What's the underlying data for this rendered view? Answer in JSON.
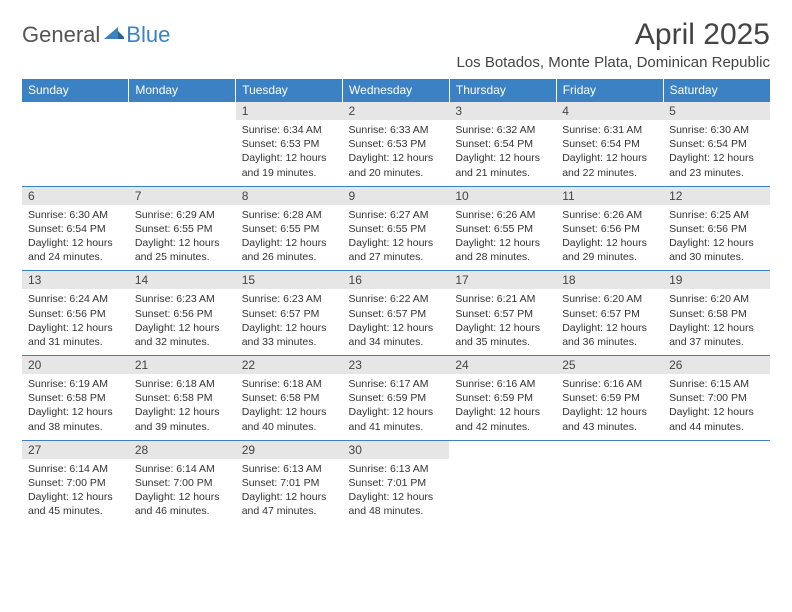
{
  "brand": {
    "part1": "General",
    "part2": "Blue"
  },
  "title": "April 2025",
  "location": "Los Botados, Monte Plata, Dominican Republic",
  "colors": {
    "header_bg": "#3b82c4",
    "header_text": "#ffffff",
    "daynum_bg": "#e6e6e6",
    "border": "#3b82c4",
    "body_text": "#333333",
    "page_bg": "#ffffff"
  },
  "typography": {
    "title_fontsize": 30,
    "location_fontsize": 15,
    "dayheader_fontsize": 12,
    "daynum_fontsize": 12,
    "cell_fontsize": 10.5
  },
  "day_headers": [
    "Sunday",
    "Monday",
    "Tuesday",
    "Wednesday",
    "Thursday",
    "Friday",
    "Saturday"
  ],
  "weeks": [
    [
      null,
      null,
      {
        "n": "1",
        "sr": "6:34 AM",
        "ss": "6:53 PM",
        "dl": "12 hours and 19 minutes."
      },
      {
        "n": "2",
        "sr": "6:33 AM",
        "ss": "6:53 PM",
        "dl": "12 hours and 20 minutes."
      },
      {
        "n": "3",
        "sr": "6:32 AM",
        "ss": "6:54 PM",
        "dl": "12 hours and 21 minutes."
      },
      {
        "n": "4",
        "sr": "6:31 AM",
        "ss": "6:54 PM",
        "dl": "12 hours and 22 minutes."
      },
      {
        "n": "5",
        "sr": "6:30 AM",
        "ss": "6:54 PM",
        "dl": "12 hours and 23 minutes."
      }
    ],
    [
      {
        "n": "6",
        "sr": "6:30 AM",
        "ss": "6:54 PM",
        "dl": "12 hours and 24 minutes."
      },
      {
        "n": "7",
        "sr": "6:29 AM",
        "ss": "6:55 PM",
        "dl": "12 hours and 25 minutes."
      },
      {
        "n": "8",
        "sr": "6:28 AM",
        "ss": "6:55 PM",
        "dl": "12 hours and 26 minutes."
      },
      {
        "n": "9",
        "sr": "6:27 AM",
        "ss": "6:55 PM",
        "dl": "12 hours and 27 minutes."
      },
      {
        "n": "10",
        "sr": "6:26 AM",
        "ss": "6:55 PM",
        "dl": "12 hours and 28 minutes."
      },
      {
        "n": "11",
        "sr": "6:26 AM",
        "ss": "6:56 PM",
        "dl": "12 hours and 29 minutes."
      },
      {
        "n": "12",
        "sr": "6:25 AM",
        "ss": "6:56 PM",
        "dl": "12 hours and 30 minutes."
      }
    ],
    [
      {
        "n": "13",
        "sr": "6:24 AM",
        "ss": "6:56 PM",
        "dl": "12 hours and 31 minutes."
      },
      {
        "n": "14",
        "sr": "6:23 AM",
        "ss": "6:56 PM",
        "dl": "12 hours and 32 minutes."
      },
      {
        "n": "15",
        "sr": "6:23 AM",
        "ss": "6:57 PM",
        "dl": "12 hours and 33 minutes."
      },
      {
        "n": "16",
        "sr": "6:22 AM",
        "ss": "6:57 PM",
        "dl": "12 hours and 34 minutes."
      },
      {
        "n": "17",
        "sr": "6:21 AM",
        "ss": "6:57 PM",
        "dl": "12 hours and 35 minutes."
      },
      {
        "n": "18",
        "sr": "6:20 AM",
        "ss": "6:57 PM",
        "dl": "12 hours and 36 minutes."
      },
      {
        "n": "19",
        "sr": "6:20 AM",
        "ss": "6:58 PM",
        "dl": "12 hours and 37 minutes."
      }
    ],
    [
      {
        "n": "20",
        "sr": "6:19 AM",
        "ss": "6:58 PM",
        "dl": "12 hours and 38 minutes."
      },
      {
        "n": "21",
        "sr": "6:18 AM",
        "ss": "6:58 PM",
        "dl": "12 hours and 39 minutes."
      },
      {
        "n": "22",
        "sr": "6:18 AM",
        "ss": "6:58 PM",
        "dl": "12 hours and 40 minutes."
      },
      {
        "n": "23",
        "sr": "6:17 AM",
        "ss": "6:59 PM",
        "dl": "12 hours and 41 minutes."
      },
      {
        "n": "24",
        "sr": "6:16 AM",
        "ss": "6:59 PM",
        "dl": "12 hours and 42 minutes."
      },
      {
        "n": "25",
        "sr": "6:16 AM",
        "ss": "6:59 PM",
        "dl": "12 hours and 43 minutes."
      },
      {
        "n": "26",
        "sr": "6:15 AM",
        "ss": "7:00 PM",
        "dl": "12 hours and 44 minutes."
      }
    ],
    [
      {
        "n": "27",
        "sr": "6:14 AM",
        "ss": "7:00 PM",
        "dl": "12 hours and 45 minutes."
      },
      {
        "n": "28",
        "sr": "6:14 AM",
        "ss": "7:00 PM",
        "dl": "12 hours and 46 minutes."
      },
      {
        "n": "29",
        "sr": "6:13 AM",
        "ss": "7:01 PM",
        "dl": "12 hours and 47 minutes."
      },
      {
        "n": "30",
        "sr": "6:13 AM",
        "ss": "7:01 PM",
        "dl": "12 hours and 48 minutes."
      },
      null,
      null,
      null
    ]
  ],
  "labels": {
    "sunrise": "Sunrise:",
    "sunset": "Sunset:",
    "daylight": "Daylight:"
  }
}
